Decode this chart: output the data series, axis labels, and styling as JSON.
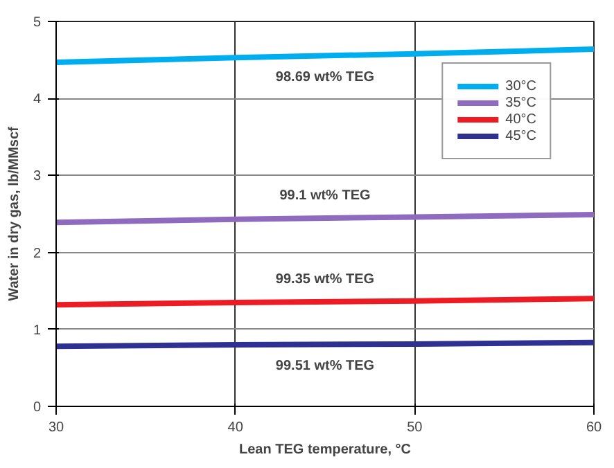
{
  "chart_data": {
    "type": "line",
    "xlabel": "Lean TEG temperature, °C",
    "ylabel": "Water in dry gas, lb/MMscf",
    "x": [
      30,
      40,
      50,
      60
    ],
    "series": [
      {
        "name": "30°C",
        "color": "#00aeef",
        "values": [
          4.47,
          4.53,
          4.58,
          4.64
        ]
      },
      {
        "name": "35°C",
        "color": "#8e6bbf",
        "values": [
          2.39,
          2.43,
          2.46,
          2.49
        ]
      },
      {
        "name": "40°C",
        "color": "#ed1c24",
        "values": [
          1.32,
          1.35,
          1.37,
          1.4
        ]
      },
      {
        "name": "45°C",
        "color": "#2e3192",
        "values": [
          0.78,
          0.8,
          0.81,
          0.83
        ]
      }
    ],
    "annotations": [
      "98.69 wt% TEG",
      "99.1 wt% TEG",
      "99.35 wt% TEG",
      "99.51 wt% TEG"
    ],
    "xlim": [
      30,
      60
    ],
    "ylim": [
      0,
      5
    ],
    "xticks": [
      30,
      40,
      50,
      60
    ],
    "yticks": [
      0,
      1,
      2,
      3,
      4,
      5
    ],
    "grid": true,
    "legend": "top right",
    "marker": "none",
    "line_style": "solid"
  }
}
